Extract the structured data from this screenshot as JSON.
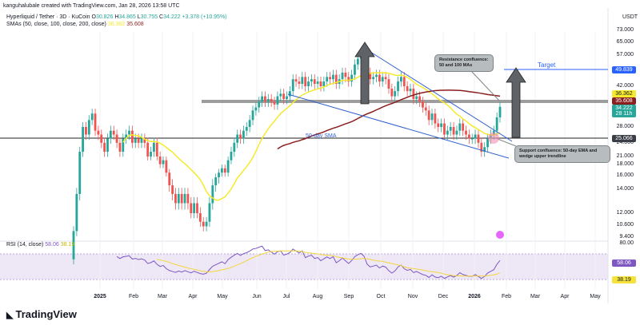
{
  "header": {
    "credit": "kanguhalubale created with TradingView.com, Jan 28, 2026 13:58 UTC",
    "symbol": "Hyperliquid / Tether · 3D · KuCoin",
    "o_label": "O",
    "o": "30.826",
    "h_label": "H",
    "h": "34.865",
    "l_label": "L",
    "l": "30.755",
    "c_label": "C",
    "c": "34.222",
    "change": "+3.378 (+10.95%)",
    "sma_label": "SMAs (50, close, 100, close, 200, close)",
    "sma_a": "36.362",
    "sma_b": "35.608",
    "rsi_label": "RSI (14, close)",
    "rsi_value": "58.06",
    "rsi_ma": "38.19"
  },
  "colors": {
    "up": "#26a69a",
    "down": "#ef5350",
    "sma50": "#f5ea2b",
    "sma200": "#8b1e1e",
    "wedge": "#2f5fd0",
    "target": "#2962ff",
    "rsi": "#7e57c2"
  },
  "chart_data": {
    "type": "candlestick",
    "interval": "3D",
    "currency": "USDT",
    "scale": "log",
    "closes": [
      10,
      14,
      22,
      28,
      26,
      30,
      32,
      27,
      26,
      24,
      22,
      25,
      27,
      26,
      24,
      22,
      25,
      26,
      27,
      24,
      25,
      24,
      25,
      24,
      21,
      22,
      24,
      21,
      19,
      20,
      17,
      15,
      14,
      13,
      14,
      13,
      14,
      13,
      12,
      13,
      12,
      11,
      10.5,
      11,
      13,
      15,
      16,
      17,
      18,
      17,
      20,
      22,
      24,
      26,
      25,
      27,
      28,
      30,
      33,
      34,
      36,
      38,
      36,
      37,
      36,
      35,
      38,
      39,
      37,
      38,
      40,
      45,
      44,
      43,
      46,
      42,
      44,
      45,
      43,
      44,
      42,
      44,
      46,
      45,
      47,
      43,
      45,
      48,
      46,
      44,
      47,
      52,
      55,
      57,
      55,
      48,
      45,
      46,
      47,
      44,
      46,
      45,
      41,
      38,
      40,
      44,
      46,
      42,
      40,
      41,
      37,
      38,
      36,
      34,
      33,
      30,
      32,
      29,
      28,
      29,
      26,
      27,
      28,
      26,
      27,
      29,
      27,
      26,
      25,
      25,
      26,
      24,
      22,
      23,
      25,
      26,
      27,
      30.8,
      34.222
    ],
    "price_ticks": [
      "73.000",
      "65.000",
      "57.000",
      "42.000",
      "28.000",
      "24.000",
      "21.000",
      "18.000",
      "16.000",
      "14.000",
      "12.000",
      "10.600",
      "9.400"
    ],
    "rsi_ticks": [
      "80.00"
    ],
    "x_ticks": [
      "2025",
      "Feb",
      "Mar",
      "Apr",
      "May",
      "Jun",
      "Jul",
      "Aug",
      "Sep",
      "Oct",
      "Nov",
      "Dec",
      "2026",
      "Feb",
      "Mar",
      "Apr",
      "May"
    ],
    "price_tags": {
      "target": "49.839",
      "sma_a": "36.362",
      "sma_b": "35.608",
      "last": "34.222",
      "countdown": "28 11h",
      "support": "25.066"
    }
  },
  "annotations": {
    "target": "Target",
    "sma_label": "50-day SMA",
    "resistance": "Resistance confluence: 50 and 100 MAs",
    "support": "Support confluence: 50-day EMA and wedge upper trendline"
  },
  "footer": {
    "logo": "TradingView"
  }
}
